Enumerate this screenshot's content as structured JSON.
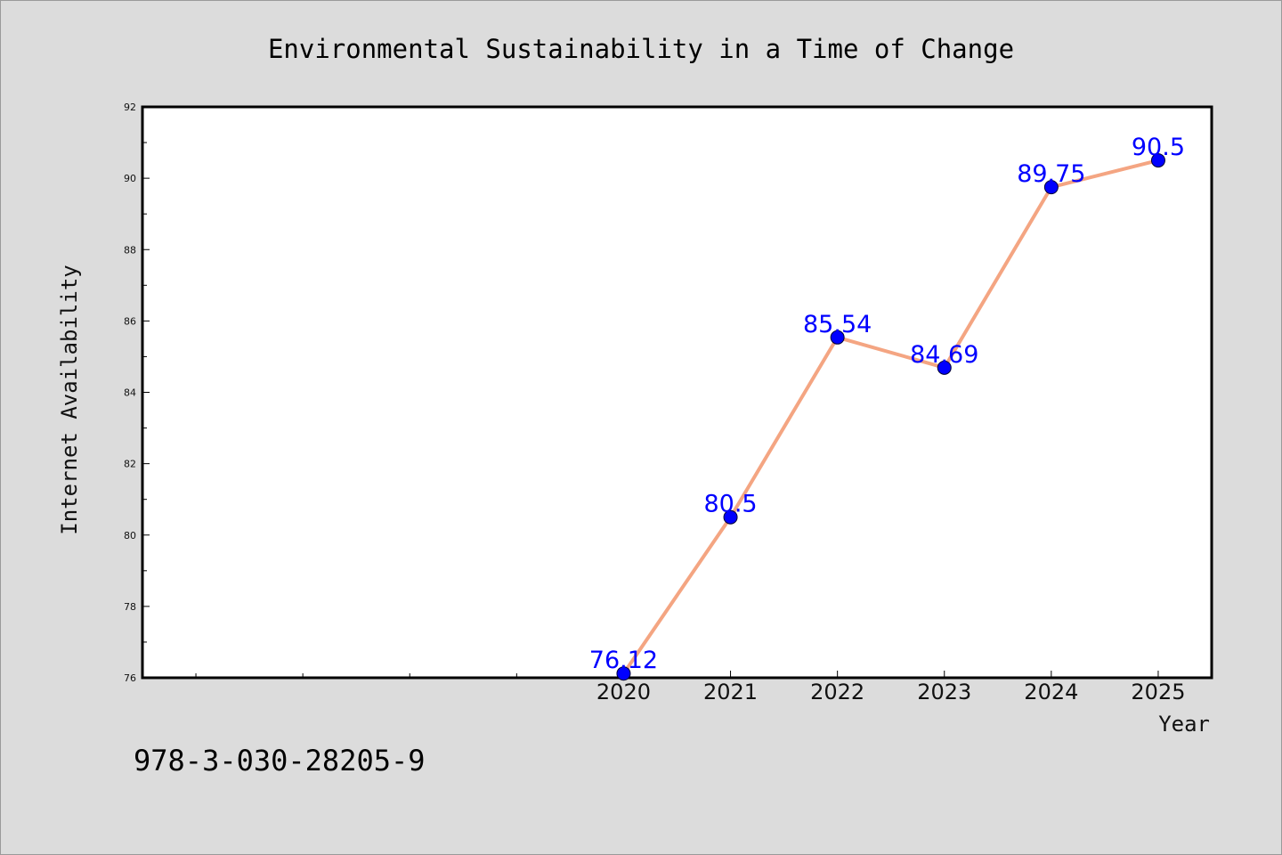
{
  "chart_data": {
    "type": "line",
    "title": "Environmental Sustainability in a Time of Change",
    "xlabel": "Year",
    "ylabel": "Internet Availability",
    "categories": [
      "2020",
      "2021",
      "2022",
      "2023",
      "2024",
      "2025"
    ],
    "series": [
      {
        "values": [
          76.12,
          80.5,
          85.54,
          84.69,
          89.75,
          90.5
        ],
        "labels": [
          "76.12",
          "80.5",
          "85.54",
          "84.69",
          "89.75",
          "90.5"
        ]
      }
    ],
    "ylim": [
      76,
      92
    ],
    "yticks": [
      "76",
      "78",
      "80",
      "82",
      "84",
      "86",
      "88",
      "90",
      "92"
    ],
    "x_slots": 10,
    "grid": false,
    "line_color": "#f4a582",
    "marker_color": "#0000ff",
    "label_color": "#0000ff"
  },
  "annotation": {
    "text": "978-3-030-28205-9"
  }
}
